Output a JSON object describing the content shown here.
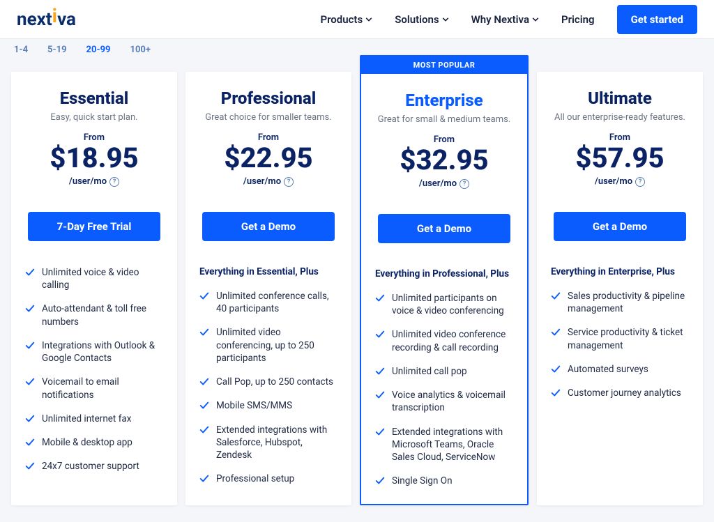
{
  "colors": {
    "brand_blue": "#0a5cff",
    "navy": "#0b2365",
    "muted": "#6b7385",
    "bg": "#f5f6fa",
    "tab_inactive": "#5a7fb5"
  },
  "header": {
    "logo_text_a": "next",
    "logo_text_b": "va",
    "nav": [
      {
        "label": "Products",
        "has_chevron": true
      },
      {
        "label": "Solutions",
        "has_chevron": true
      },
      {
        "label": "Why Nextiva",
        "has_chevron": true
      },
      {
        "label": "Pricing",
        "has_chevron": false
      }
    ],
    "cta": "Get started"
  },
  "tiers": {
    "items": [
      "1-4",
      "5-19",
      "20-99",
      "100+"
    ],
    "active_index": 2
  },
  "plans": [
    {
      "name": "Essential",
      "subtitle": "Easy, quick start plan.",
      "from_label": "From",
      "price": "$18.95",
      "per": "/user/mo",
      "cta": "7-Day Free Trial",
      "highlight": false,
      "everything_heading": "",
      "features": [
        "Unlimited voice & video calling",
        "Auto-attendant & toll free numbers",
        "Integrations with Outlook & Google Contacts",
        "Voicemail to email notifications",
        "Unlimited internet fax",
        "Mobile & desktop app",
        "24x7 customer support"
      ]
    },
    {
      "name": "Professional",
      "subtitle": "Great choice for smaller teams.",
      "from_label": "From",
      "price": "$22.95",
      "per": "/user/mo",
      "cta": "Get a Demo",
      "highlight": false,
      "everything_heading": "Everything in Essential, Plus",
      "features": [
        "Unlimited conference calls, 40 participants",
        "Unlimited video conferencing, up to 250 participants",
        "Call Pop, up to 250 contacts",
        "Mobile SMS/MMS",
        "Extended integrations with Salesforce, Hubspot, Zendesk",
        "Professional setup"
      ]
    },
    {
      "name": "Enterprise",
      "subtitle": "Great for small & medium teams.",
      "from_label": "From",
      "price": "$32.95",
      "per": "/user/mo",
      "cta": "Get a Demo",
      "highlight": true,
      "popular_label": "MOST POPULAR",
      "everything_heading": "Everything in Professional, Plus",
      "features": [
        "Unlimited participants on voice & video conferencing",
        "Unlimited video conference recording & call recording",
        "Unlimited call pop",
        "Voice analytics & voicemail transcription",
        "Extended integrations with Microsoft Teams, Oracle Sales Cloud, ServiceNow",
        "Single Sign On"
      ]
    },
    {
      "name": "Ultimate",
      "subtitle": "All our enterprise-ready features.",
      "from_label": "From",
      "price": "$57.95",
      "per": "/user/mo",
      "cta": "Get a Demo",
      "highlight": false,
      "everything_heading": "Everything in Enterprise, Plus",
      "features": [
        "Sales productivity & pipeline management",
        "Service productivity & ticket management",
        "Automated surveys",
        "Customer journey analytics"
      ]
    }
  ]
}
